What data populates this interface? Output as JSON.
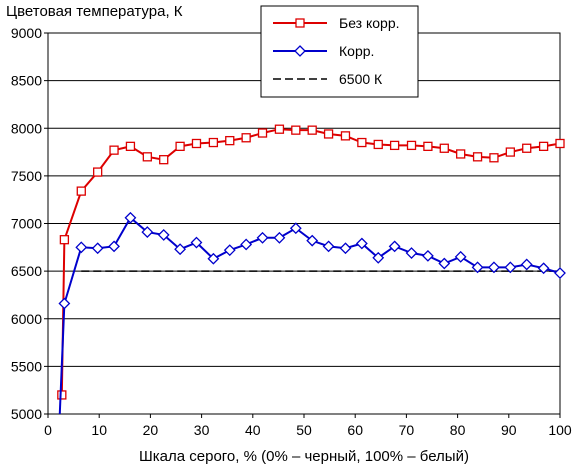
{
  "chart_data": {
    "type": "line",
    "title": "",
    "ylabel": "Цветовая температура, К",
    "xlabel": "Шкала серого, % (0% – черный, 100% – белый)",
    "xlim": [
      0,
      100
    ],
    "ylim": [
      5000,
      9000
    ],
    "xticks": [
      0,
      10,
      20,
      30,
      40,
      50,
      60,
      70,
      80,
      90,
      100
    ],
    "yticks": [
      5000,
      5500,
      6000,
      6500,
      7000,
      7500,
      8000,
      8500,
      9000
    ],
    "grid": "horizontal",
    "legend_position": "top-center",
    "series": [
      {
        "name": "Без корр.",
        "color": "#dd0000",
        "marker": "square",
        "x": [
          2.7,
          3.2,
          6.5,
          9.7,
          12.9,
          16.1,
          19.4,
          22.6,
          25.8,
          29.0,
          32.3,
          35.5,
          38.7,
          41.9,
          45.2,
          48.4,
          51.6,
          54.8,
          58.1,
          61.3,
          64.5,
          67.7,
          71.0,
          74.2,
          77.4,
          80.6,
          83.9,
          87.1,
          90.3,
          93.5,
          96.8,
          100
        ],
        "y": [
          5200,
          6830,
          7340,
          7540,
          7770,
          7810,
          7700,
          7670,
          7810,
          7840,
          7850,
          7870,
          7900,
          7950,
          7990,
          7980,
          7980,
          7940,
          7920,
          7850,
          7830,
          7820,
          7820,
          7810,
          7790,
          7730,
          7700,
          7690,
          7750,
          7790,
          7810,
          7840
        ]
      },
      {
        "name": "Корр.",
        "color": "#0000cc",
        "marker": "diamond",
        "x": [
          2.3,
          3.2,
          6.5,
          9.7,
          12.9,
          16.1,
          19.4,
          22.6,
          25.8,
          29.0,
          32.3,
          35.5,
          38.7,
          41.9,
          45.2,
          48.4,
          51.6,
          54.8,
          58.1,
          61.3,
          64.5,
          67.7,
          71.0,
          74.2,
          77.4,
          80.6,
          83.9,
          87.1,
          90.3,
          93.5,
          96.8,
          100
        ],
        "y": [
          5000,
          6160,
          6750,
          6740,
          6760,
          7060,
          6910,
          6880,
          6730,
          6800,
          6630,
          6720,
          6780,
          6850,
          6850,
          6950,
          6820,
          6760,
          6740,
          6790,
          6640,
          6760,
          6690,
          6660,
          6580,
          6650,
          6540,
          6540,
          6540,
          6570,
          6530,
          6480
        ]
      },
      {
        "name": "6500 К",
        "color": "#000000",
        "style": "dashed",
        "x": [
          6.5,
          100
        ],
        "y": [
          6500,
          6500
        ]
      }
    ]
  }
}
